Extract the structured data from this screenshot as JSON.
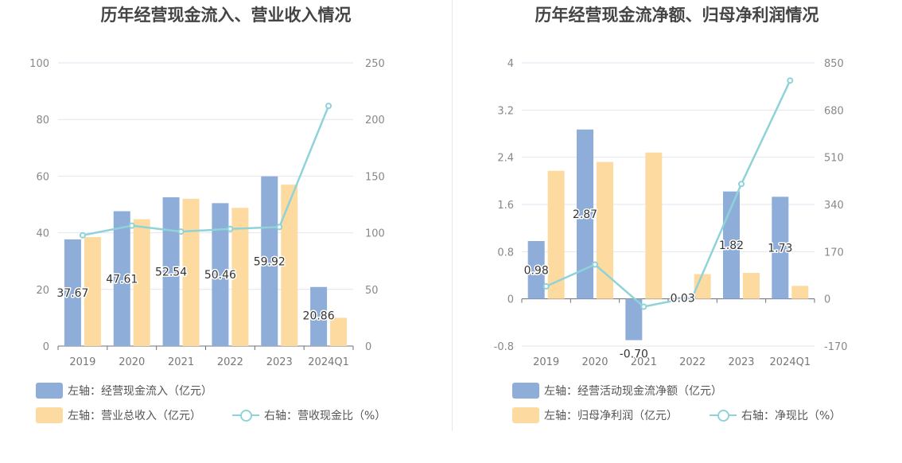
{
  "colors": {
    "bar_a": "#8eadd9",
    "bar_b": "#fddba0",
    "line": "#8ed3d8"
  },
  "chart_data": [
    {
      "type": "bar",
      "title": "历年经营现金流入、营业收入情况",
      "categories": [
        "2019",
        "2020",
        "2021",
        "2022",
        "2023",
        "2024Q1"
      ],
      "left_ticks": [
        "0",
        "20",
        "40",
        "60",
        "80",
        "100"
      ],
      "right_ticks": [
        "0",
        "50",
        "100",
        "150",
        "200",
        "250"
      ],
      "ylim_left": [
        0,
        100
      ],
      "ylim_right": [
        0,
        250
      ],
      "grid": true,
      "legend_position": "bottom-left",
      "series": [
        {
          "name": "左轴：经营现金流入（亿元）",
          "type": "bar",
          "axis": "left",
          "values": [
            37.67,
            47.61,
            52.54,
            50.46,
            59.92,
            20.86
          ],
          "labels": [
            "37.67",
            "47.61",
            "52.54",
            "50.46",
            "59.92",
            "20.86"
          ]
        },
        {
          "name": "左轴：营业总收入（亿元）",
          "type": "bar",
          "axis": "left",
          "values": [
            38.5,
            44.8,
            52.0,
            48.8,
            57.0,
            10.0
          ]
        },
        {
          "name": "右轴：营收现金比（%）",
          "type": "line",
          "axis": "right",
          "values": [
            97.8,
            106.3,
            101.0,
            103.4,
            105.1,
            212.0
          ]
        }
      ]
    },
    {
      "type": "bar",
      "title": "历年经营现金流净额、归母净利润情况",
      "categories": [
        "2019",
        "2020",
        "2021",
        "2022",
        "2023",
        "2024Q1"
      ],
      "left_ticks": [
        "-0.8",
        "0",
        "0.8",
        "1.6",
        "2.4",
        "3.2",
        "4"
      ],
      "right_ticks": [
        "-170",
        "0",
        "170",
        "340",
        "510",
        "680",
        "850"
      ],
      "ylim_left": [
        -0.8,
        4
      ],
      "ylim_right": [
        -170,
        850
      ],
      "grid": true,
      "legend_position": "bottom-left",
      "series": [
        {
          "name": "左轴：经营活动现金流净额（亿元）",
          "type": "bar",
          "axis": "left",
          "values": [
            0.98,
            2.87,
            -0.7,
            0.03,
            1.82,
            1.73
          ],
          "labels": [
            "0.98",
            "2.87",
            "-0.70",
            "0.03",
            "1.82",
            "1.73"
          ]
        },
        {
          "name": "左轴：归母净利润（亿元）",
          "type": "bar",
          "axis": "left",
          "values": [
            2.17,
            2.32,
            2.48,
            0.42,
            0.44,
            0.22
          ]
        },
        {
          "name": "右轴：净现比（%）",
          "type": "line",
          "axis": "right",
          "values": [
            45.2,
            123.7,
            -28.2,
            7.1,
            413.6,
            786.4
          ]
        }
      ]
    }
  ]
}
